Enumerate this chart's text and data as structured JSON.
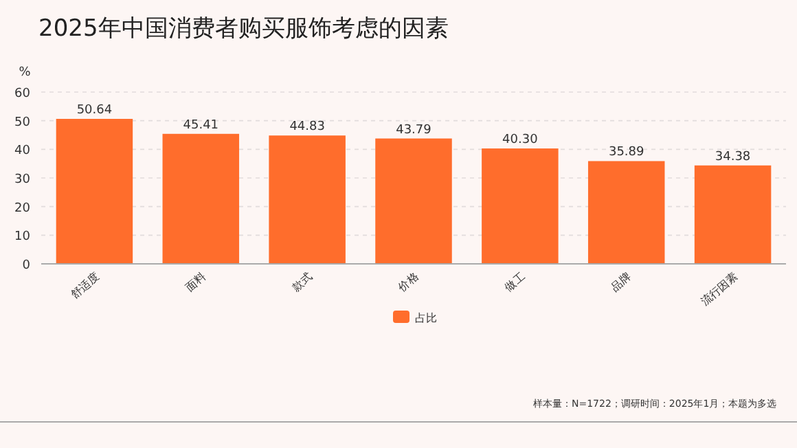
{
  "chart_data": {
    "type": "bar",
    "title": "2025年中国消费者购买服饰考虑的因素",
    "ylabel": "%",
    "categories": [
      "舒适度",
      "面料",
      "款式",
      "价格",
      "做工",
      "品牌",
      "流行因素"
    ],
    "series": [
      {
        "name": "占比",
        "color": "#ff6d2c",
        "values": [
          50.64,
          45.41,
          44.83,
          43.79,
          40.3,
          35.89,
          34.38
        ]
      }
    ],
    "value_labels": [
      "50.64",
      "45.41",
      "44.83",
      "43.79",
      "40.30",
      "35.89",
      "34.38"
    ],
    "ylim": [
      0,
      60
    ],
    "yticks": [
      0,
      10,
      20,
      30,
      40,
      50,
      60
    ],
    "grid": "y",
    "legend": "bottom",
    "annotations": [
      "样本量：N=1722；调研时间：2025年1月；本题为多选"
    ]
  }
}
